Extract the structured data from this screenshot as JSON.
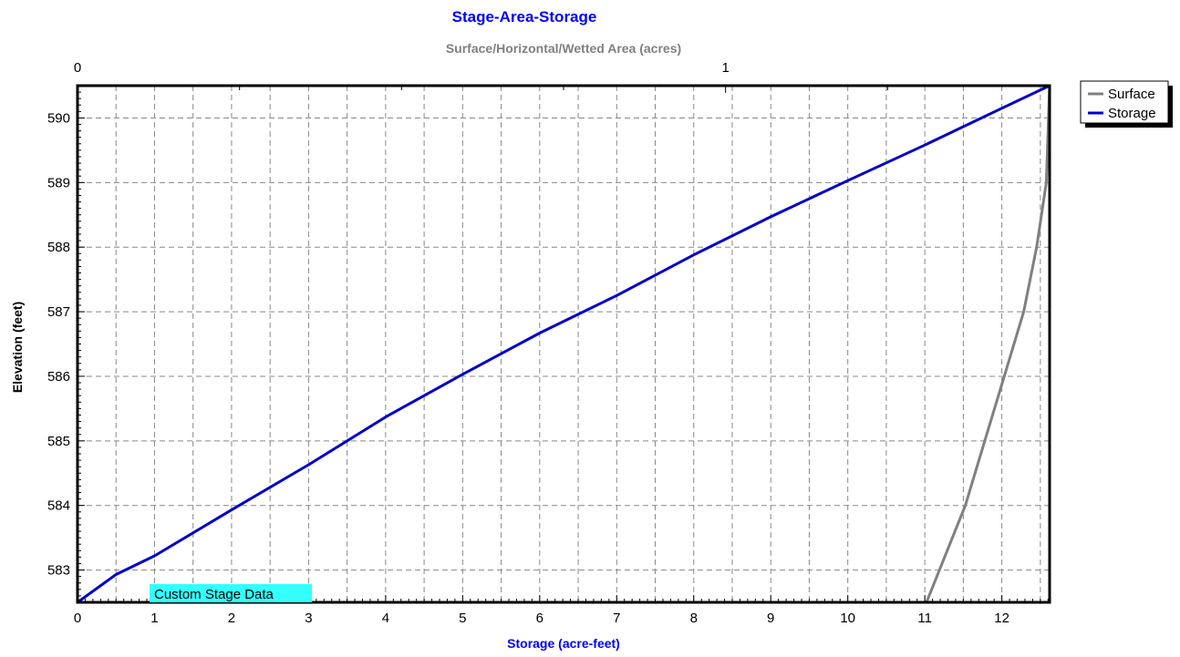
{
  "chart_data": {
    "type": "line",
    "title": "Stage-Area-Storage",
    "xlabel": "Storage (acre-feet)",
    "x2label": "Surface/Horizontal/Wetted Area (acres)",
    "ylabel": "Elevation  (feet)",
    "xlim": [
      0,
      12.62
    ],
    "x2lim": [
      0,
      1.5
    ],
    "ylim": [
      582.5,
      590.5
    ],
    "x_ticks": [
      0,
      1,
      2,
      3,
      4,
      5,
      6,
      7,
      8,
      9,
      10,
      11,
      12
    ],
    "x2_ticks": [
      0,
      1
    ],
    "y_ticks": [
      583,
      584,
      585,
      586,
      587,
      588,
      589,
      590
    ],
    "grid": true,
    "legend_position": "top-right, outside",
    "annotation": "Custom Stage Data",
    "colors": {
      "title": "#0000ff",
      "xlabel": "#0000ff",
      "x2label": "#808080",
      "surface": "#808080",
      "storage": "#0000cc",
      "annotation_bg": "#33ffff"
    },
    "series": [
      {
        "name": "Surface",
        "axis": "x2",
        "color": "#808080",
        "points": [
          [
            1.31,
            582.5
          ],
          [
            1.33,
            583.0
          ],
          [
            1.37,
            584.0
          ],
          [
            1.4,
            585.0
          ],
          [
            1.43,
            586.0
          ],
          [
            1.46,
            587.0
          ],
          [
            1.48,
            588.0
          ],
          [
            1.495,
            589.0
          ],
          [
            1.5,
            590.5
          ]
        ]
      },
      {
        "name": "Storage",
        "axis": "x",
        "color": "#0000cc",
        "points": [
          [
            0,
            582.5
          ],
          [
            0.5,
            582.93
          ],
          [
            1.0,
            583.22
          ],
          [
            2.0,
            583.93
          ],
          [
            3.0,
            584.63
          ],
          [
            4.0,
            585.37
          ],
          [
            5.0,
            586.03
          ],
          [
            6.0,
            586.67
          ],
          [
            7.0,
            587.25
          ],
          [
            8.0,
            587.88
          ],
          [
            9.0,
            588.47
          ],
          [
            10.0,
            589.03
          ],
          [
            11.0,
            589.58
          ],
          [
            12.0,
            590.15
          ],
          [
            12.62,
            590.5
          ]
        ]
      }
    ]
  }
}
